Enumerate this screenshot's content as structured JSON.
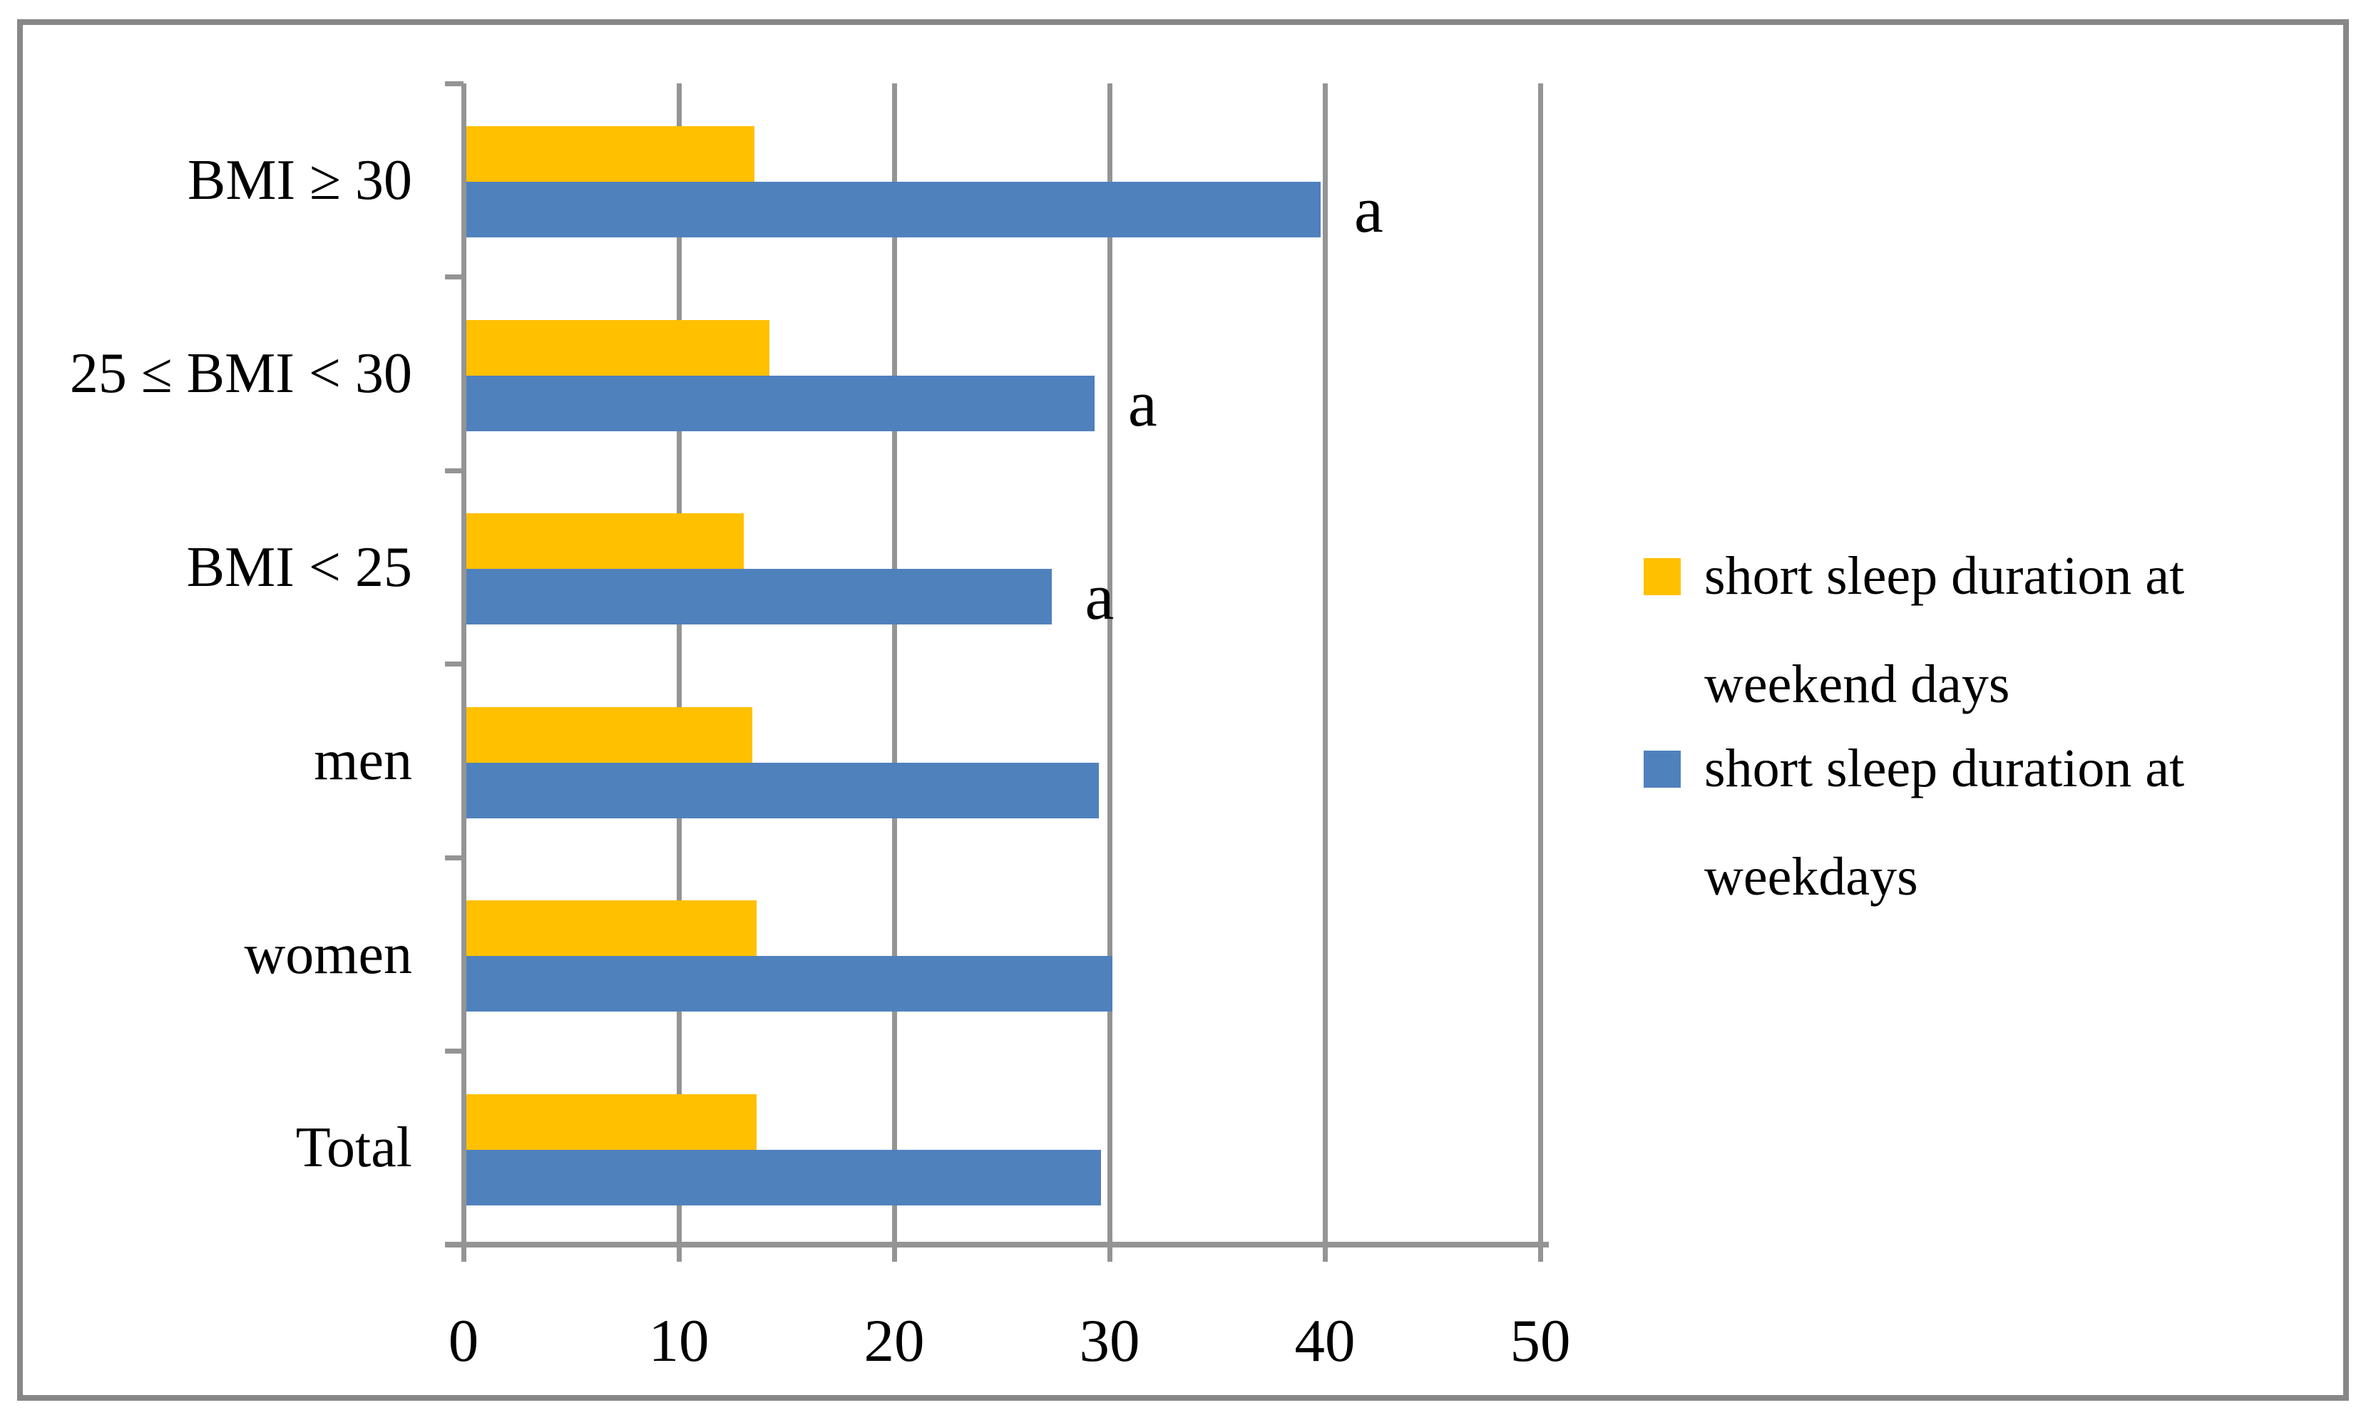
{
  "chart_data": {
    "type": "bar",
    "orientation": "horizontal",
    "title": "",
    "xlabel": "",
    "ylabel": "",
    "grid": true,
    "legend_position": "right",
    "categories_top_to_bottom": [
      "BMI ≥ 30",
      "25 ≤ BMI < 30",
      "BMI < 25",
      "men",
      "women",
      "Total"
    ],
    "series": [
      {
        "name": "short sleep duration at weekend days",
        "color": "#FFC000",
        "values_top_to_bottom": [
          13.4,
          14.1,
          12.9,
          13.3,
          13.5,
          13.5
        ]
      },
      {
        "name": "short sleep duration at weekdays",
        "color": "#4F81BD",
        "values_top_to_bottom": [
          39.7,
          29.2,
          27.2,
          29.4,
          30.0,
          29.5
        ]
      }
    ],
    "annotations": [
      {
        "category_index": 0,
        "series": "short sleep duration at weekdays",
        "label": "a"
      },
      {
        "category_index": 1,
        "series": "short sleep duration at weekdays",
        "label": "a"
      },
      {
        "category_index": 2,
        "series": "short sleep duration at weekdays",
        "label": "a"
      }
    ],
    "x_axis": {
      "min": 0,
      "max": 50,
      "tick_step": 10,
      "tick_labels": [
        "0",
        "10",
        "20",
        "30",
        "40",
        "50"
      ]
    },
    "legend": [
      {
        "color": "#FFC000",
        "label": "short sleep duration at weekend days",
        "label_lines": [
          "short sleep duration at",
          "weekend days"
        ]
      },
      {
        "color": "#4F81BD",
        "label": "short sleep duration at weekdays",
        "label_lines": [
          "short sleep duration at",
          "weekdays"
        ]
      }
    ]
  },
  "colors": {
    "frame_border": "#878787",
    "grid": "#949494",
    "text": "#000000",
    "background": "#FFFFFF"
  }
}
